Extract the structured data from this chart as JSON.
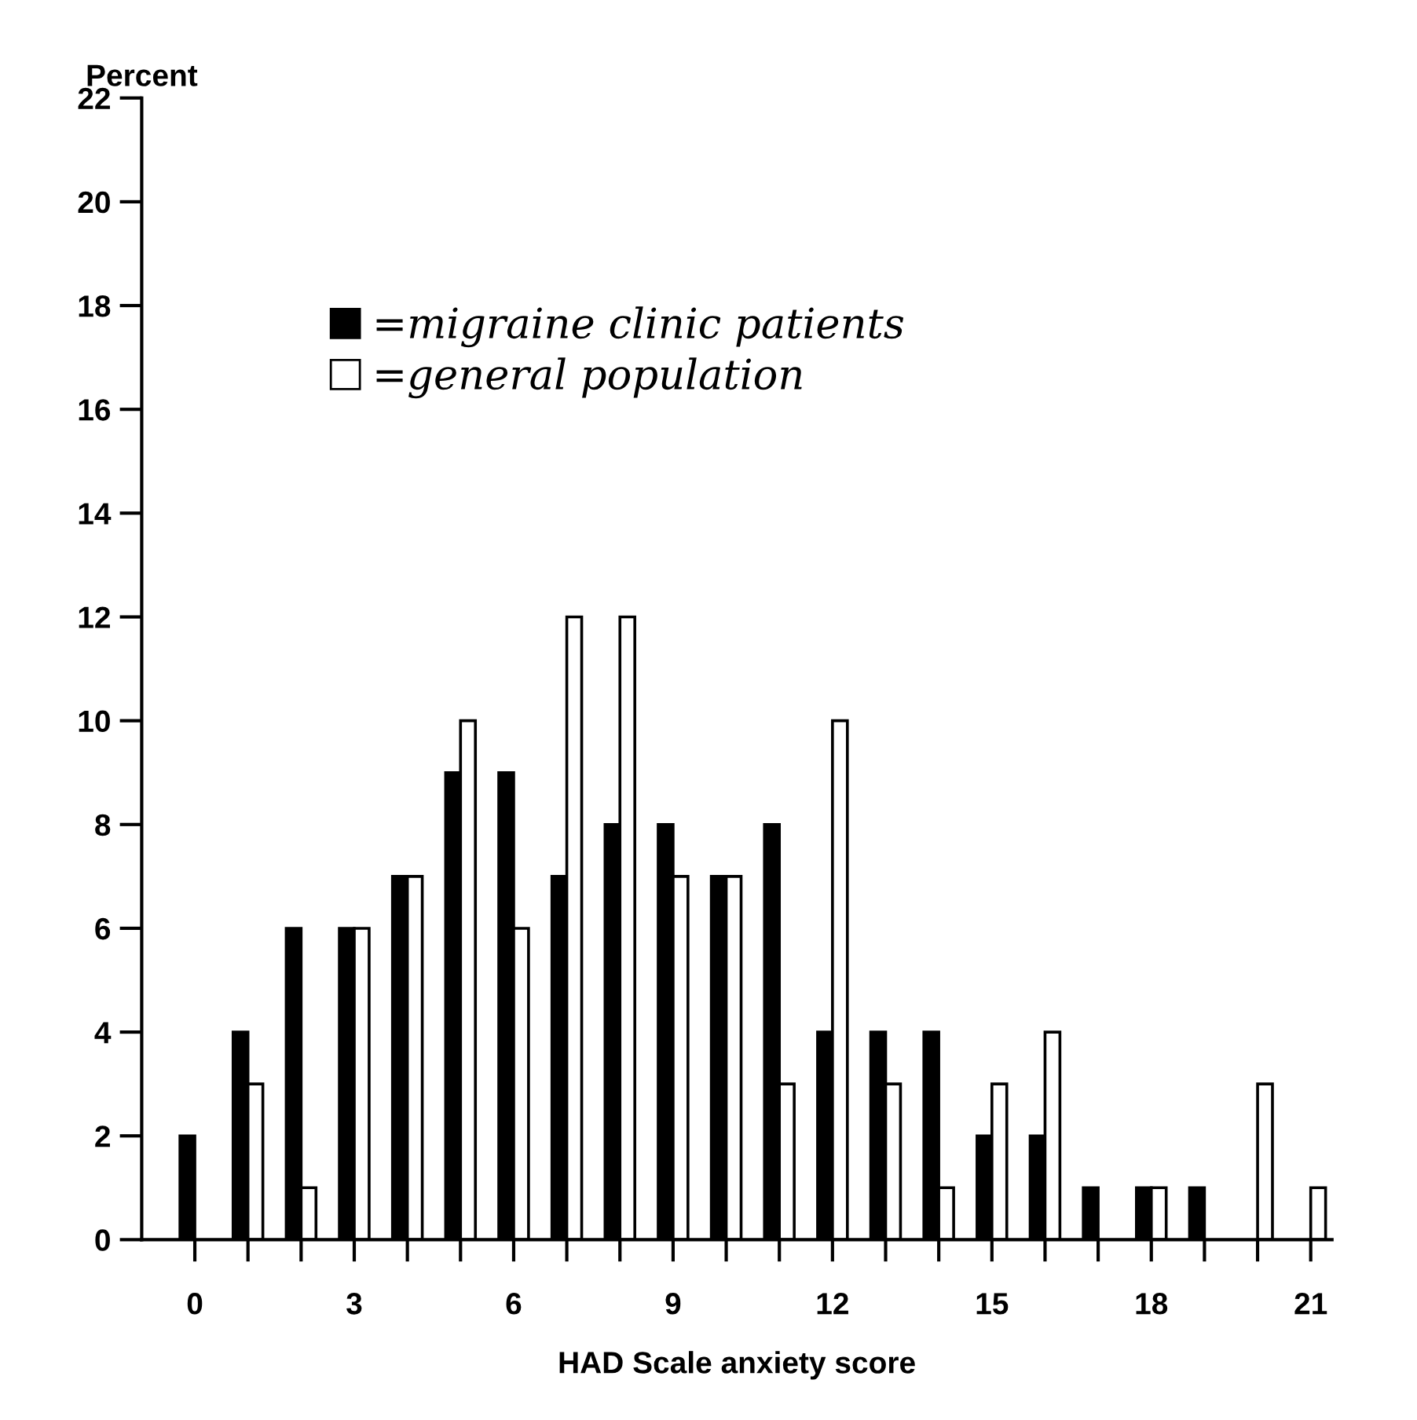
{
  "chart_data": {
    "type": "bar",
    "x": [
      0,
      1,
      2,
      3,
      4,
      5,
      6,
      7,
      8,
      9,
      10,
      11,
      12,
      13,
      14,
      15,
      16,
      17,
      18,
      19,
      20,
      21
    ],
    "series": [
      {
        "name": "=migraine clinic patients",
        "color": "#000000",
        "values": [
          2,
          4,
          6,
          6,
          7,
          9,
          9,
          7,
          8,
          8,
          7,
          8,
          4,
          4,
          4,
          2,
          2,
          1,
          1,
          1,
          0,
          0
        ]
      },
      {
        "name": "=general population",
        "color": "#ffffff",
        "values": [
          0,
          3,
          1,
          6,
          7,
          10,
          6,
          12,
          12,
          7,
          7,
          3,
          10,
          3,
          1,
          3,
          4,
          0,
          1,
          0,
          3,
          1
        ]
      }
    ],
    "xlabel": "HAD Scale anxiety score",
    "ylabel": "Percent",
    "xlim": [
      -1,
      21.4
    ],
    "ylim": [
      0,
      22
    ],
    "xticks": [
      0,
      {
        "value": 1,
        "label": null
      },
      {
        "value": 2,
        "label": null
      },
      3,
      {
        "value": 4,
        "label": null
      },
      {
        "value": 5,
        "label": null
      },
      6,
      {
        "value": 7,
        "label": null
      },
      {
        "value": 8,
        "label": null
      },
      9,
      {
        "value": 10,
        "label": null
      },
      {
        "value": 11,
        "label": null
      },
      12,
      {
        "value": 13,
        "label": null
      },
      {
        "value": 14,
        "label": null
      },
      15,
      {
        "value": 16,
        "label": null
      },
      {
        "value": 17,
        "label": null
      },
      18,
      {
        "value": 19,
        "label": null
      },
      {
        "value": 20,
        "label": null
      },
      21
    ],
    "yticks": [
      0,
      2,
      4,
      6,
      8,
      10,
      12,
      14,
      16,
      18,
      20,
      22
    ],
    "grid": false,
    "legend": "top"
  }
}
